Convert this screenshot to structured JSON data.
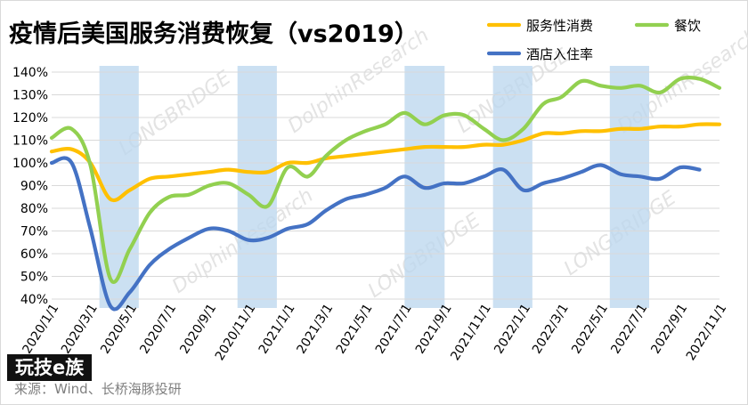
{
  "chart_data": {
    "type": "line",
    "title": "疫情后美国服务消费恢复（vs2019）",
    "xlabel": "",
    "ylabel": "",
    "ylim": [
      0.4,
      1.4
    ],
    "y_ticks": [
      "40%",
      "50%",
      "60%",
      "70%",
      "80%",
      "90%",
      "100%",
      "110%",
      "120%",
      "130%",
      "140%"
    ],
    "x_ticks": [
      "2020/1/1",
      "2020/3/1",
      "2020/5/1",
      "2020/7/1",
      "2020/9/1",
      "2020/11/1",
      "2021/1/1",
      "2021/3/1",
      "2021/5/1",
      "2021/7/1",
      "2021/9/1",
      "2021/11/1",
      "2022/1/1",
      "2022/3/1",
      "2022/5/1",
      "2022/7/1",
      "2022/9/1",
      "2022/11/1"
    ],
    "legend_position": "top-right",
    "grid": "horizontal",
    "shaded_periods": [
      [
        "2020/3/15",
        "2020/5/15"
      ],
      [
        "2020/10/15",
        "2020/12/15"
      ],
      [
        "2021/7/1",
        "2021/9/1"
      ],
      [
        "2021/11/15",
        "2022/1/15"
      ],
      [
        "2022/5/15",
        "2022/7/15"
      ]
    ],
    "series": [
      {
        "name": "服务性消费",
        "color": "#ffc000",
        "points": [
          [
            "2020/1/1",
            1.05
          ],
          [
            "2020/2/1",
            1.06
          ],
          [
            "2020/3/1",
            1.0
          ],
          [
            "2020/4/1",
            0.84
          ],
          [
            "2020/5/1",
            0.88
          ],
          [
            "2020/6/1",
            0.93
          ],
          [
            "2020/7/1",
            0.94
          ],
          [
            "2020/8/1",
            0.95
          ],
          [
            "2020/9/1",
            0.96
          ],
          [
            "2020/10/1",
            0.97
          ],
          [
            "2020/11/1",
            0.96
          ],
          [
            "2020/12/1",
            0.96
          ],
          [
            "2021/1/1",
            1.0
          ],
          [
            "2021/2/1",
            1.0
          ],
          [
            "2021/3/1",
            1.02
          ],
          [
            "2021/4/1",
            1.03
          ],
          [
            "2021/5/1",
            1.04
          ],
          [
            "2021/6/1",
            1.05
          ],
          [
            "2021/7/1",
            1.06
          ],
          [
            "2021/8/1",
            1.07
          ],
          [
            "2021/9/1",
            1.07
          ],
          [
            "2021/10/1",
            1.07
          ],
          [
            "2021/11/1",
            1.08
          ],
          [
            "2021/12/1",
            1.08
          ],
          [
            "2022/1/1",
            1.1
          ],
          [
            "2022/2/1",
            1.13
          ],
          [
            "2022/3/1",
            1.13
          ],
          [
            "2022/4/1",
            1.14
          ],
          [
            "2022/5/1",
            1.14
          ],
          [
            "2022/6/1",
            1.15
          ],
          [
            "2022/7/1",
            1.15
          ],
          [
            "2022/8/1",
            1.16
          ],
          [
            "2022/9/1",
            1.16
          ],
          [
            "2022/10/1",
            1.17
          ],
          [
            "2022/11/1",
            1.17
          ]
        ]
      },
      {
        "name": "餐饮",
        "color": "#92d050",
        "points": [
          [
            "2020/1/1",
            1.11
          ],
          [
            "2020/2/1",
            1.15
          ],
          [
            "2020/3/1",
            0.99
          ],
          [
            "2020/4/1",
            0.49
          ],
          [
            "2020/5/1",
            0.62
          ],
          [
            "2020/6/1",
            0.78
          ],
          [
            "2020/7/1",
            0.85
          ],
          [
            "2020/8/1",
            0.86
          ],
          [
            "2020/9/1",
            0.9
          ],
          [
            "2020/10/1",
            0.91
          ],
          [
            "2020/11/1",
            0.86
          ],
          [
            "2020/12/1",
            0.81
          ],
          [
            "2021/1/1",
            0.98
          ],
          [
            "2021/2/1",
            0.94
          ],
          [
            "2021/3/1",
            1.03
          ],
          [
            "2021/4/1",
            1.1
          ],
          [
            "2021/5/1",
            1.14
          ],
          [
            "2021/6/1",
            1.17
          ],
          [
            "2021/7/1",
            1.22
          ],
          [
            "2021/8/1",
            1.17
          ],
          [
            "2021/9/1",
            1.21
          ],
          [
            "2021/10/1",
            1.21
          ],
          [
            "2021/11/1",
            1.15
          ],
          [
            "2021/12/1",
            1.1
          ],
          [
            "2022/1/1",
            1.15
          ],
          [
            "2022/2/1",
            1.26
          ],
          [
            "2022/3/1",
            1.29
          ],
          [
            "2022/4/1",
            1.36
          ],
          [
            "2022/5/1",
            1.34
          ],
          [
            "2022/6/1",
            1.33
          ],
          [
            "2022/7/1",
            1.34
          ],
          [
            "2022/8/1",
            1.31
          ],
          [
            "2022/9/1",
            1.37
          ],
          [
            "2022/10/1",
            1.37
          ],
          [
            "2022/11/1",
            1.33
          ]
        ]
      },
      {
        "name": "酒店入住率",
        "color": "#4472c4",
        "points": [
          [
            "2020/1/1",
            1.0
          ],
          [
            "2020/2/1",
            1.0
          ],
          [
            "2020/3/1",
            0.71
          ],
          [
            "2020/4/1",
            0.37
          ],
          [
            "2020/5/1",
            0.43
          ],
          [
            "2020/6/1",
            0.55
          ],
          [
            "2020/7/1",
            0.62
          ],
          [
            "2020/8/1",
            0.67
          ],
          [
            "2020/9/1",
            0.71
          ],
          [
            "2020/10/1",
            0.7
          ],
          [
            "2020/11/1",
            0.66
          ],
          [
            "2020/12/1",
            0.67
          ],
          [
            "2021/1/1",
            0.71
          ],
          [
            "2021/2/1",
            0.73
          ],
          [
            "2021/3/1",
            0.79
          ],
          [
            "2021/4/1",
            0.84
          ],
          [
            "2021/5/1",
            0.86
          ],
          [
            "2021/6/1",
            0.89
          ],
          [
            "2021/7/1",
            0.94
          ],
          [
            "2021/8/1",
            0.89
          ],
          [
            "2021/9/1",
            0.91
          ],
          [
            "2021/10/1",
            0.91
          ],
          [
            "2021/11/1",
            0.94
          ],
          [
            "2021/12/1",
            0.97
          ],
          [
            "2022/1/1",
            0.88
          ],
          [
            "2022/2/1",
            0.91
          ],
          [
            "2022/3/1",
            0.93
          ],
          [
            "2022/4/1",
            0.96
          ],
          [
            "2022/5/1",
            0.99
          ],
          [
            "2022/6/1",
            0.95
          ],
          [
            "2022/7/1",
            0.94
          ],
          [
            "2022/8/1",
            0.93
          ],
          [
            "2022/9/1",
            0.98
          ],
          [
            "2022/10/1",
            0.97
          ]
        ]
      }
    ]
  },
  "source": "来源：Wind、长桥海豚投研",
  "badge": "玩技e族",
  "watermarks": [
    "LONGBRIDGE",
    "DolphinResearch"
  ]
}
